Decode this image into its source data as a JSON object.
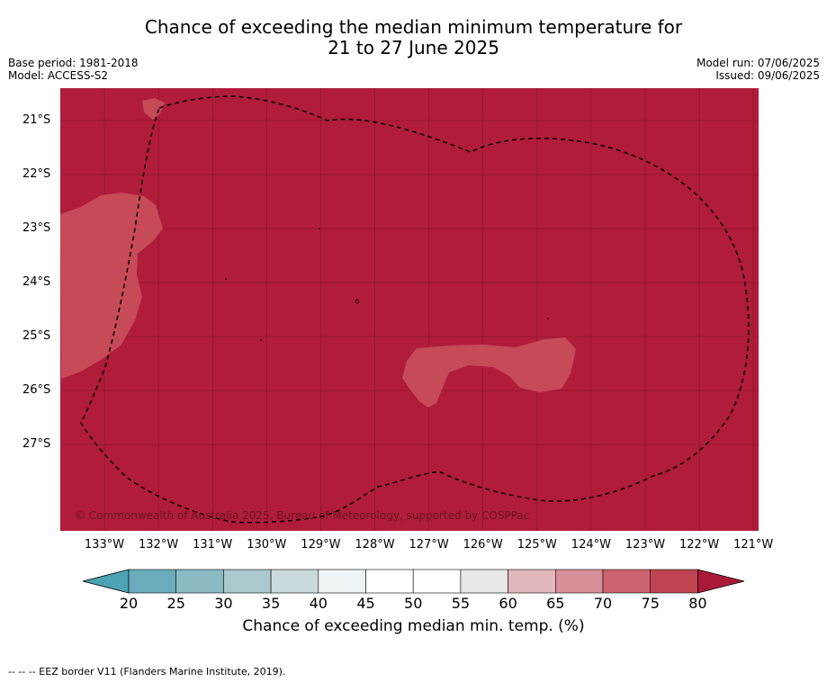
{
  "title": {
    "line1": "Chance of exceeding the median minimum temperature for",
    "line2": "21 to 27 June 2025"
  },
  "meta": {
    "base_period": "Base period: 1981-2018",
    "model": "Model: ACCESS-S2",
    "model_run": "Model run: 07/06/2025",
    "issued": "Issued: 09/06/2025"
  },
  "map": {
    "lat_labels": [
      "21°S",
      "22°S",
      "23°S",
      "24°S",
      "25°S",
      "26°S",
      "27°S"
    ],
    "lon_labels": [
      "133°W",
      "132°W",
      "131°W",
      "130°W",
      "129°W",
      "128°W",
      "127°W",
      "126°W",
      "125°W",
      "124°W",
      "123°W",
      "122°W",
      "121°W"
    ],
    "credit": "© Commonwealth of Australia 2025, Bureau of Meteorology, supported by COSPPac",
    "colors": {
      "dominant": "#b01c3a",
      "patch": "#c64a57",
      "border": "#000000"
    }
  },
  "colorbar": {
    "ticks": [
      "20",
      "25",
      "30",
      "35",
      "40",
      "45",
      "50",
      "55",
      "60",
      "65",
      "70",
      "75",
      "80"
    ],
    "colors": [
      "#4ba3b3",
      "#6badbd",
      "#8cbbc6",
      "#abc8cd",
      "#cbdadd",
      "#eef3f5",
      "#ffffff",
      "#ffffff",
      "#e9e8e8",
      "#e2b8bd",
      "#d98f97",
      "#cc6470",
      "#c04452",
      "#aa1a36"
    ],
    "label": "Chance of exceeding median min. temp. (%)"
  },
  "footer": "--  --  -- EEZ border V11 (Flanders Marine Institute, 2019)."
}
